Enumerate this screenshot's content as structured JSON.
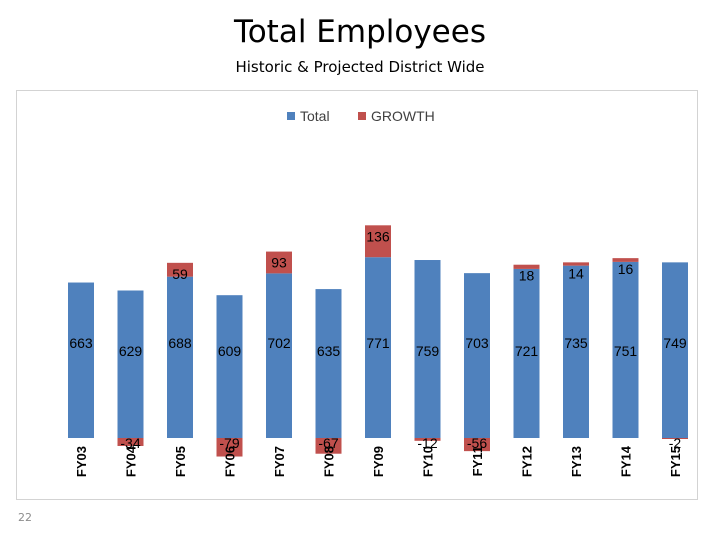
{
  "slide": {
    "title": "Total Employees",
    "subtitle": "Historic & Projected District Wide",
    "page_number": "22"
  },
  "chart_data": {
    "type": "bar",
    "stacked": true,
    "categories": [
      "FY03",
      "FY04",
      "FY05",
      "FY06",
      "FY07",
      "FY08",
      "FY09",
      "FY10",
      "FY11",
      "FY12",
      "FY13",
      "FY14",
      "FY15"
    ],
    "series": [
      {
        "name": "Total",
        "color": "#4f81bd",
        "values": [
          663,
          629,
          688,
          609,
          702,
          635,
          771,
          759,
          703,
          721,
          735,
          751,
          749
        ]
      },
      {
        "name": "GROWTH",
        "color": "#c0504d",
        "values": [
          null,
          -34,
          59,
          -79,
          93,
          -67,
          136,
          -12,
          -56,
          18,
          14,
          16,
          -2
        ]
      }
    ],
    "legend": "top-center",
    "grid": false,
    "ylim": [
      -80,
      940
    ]
  }
}
